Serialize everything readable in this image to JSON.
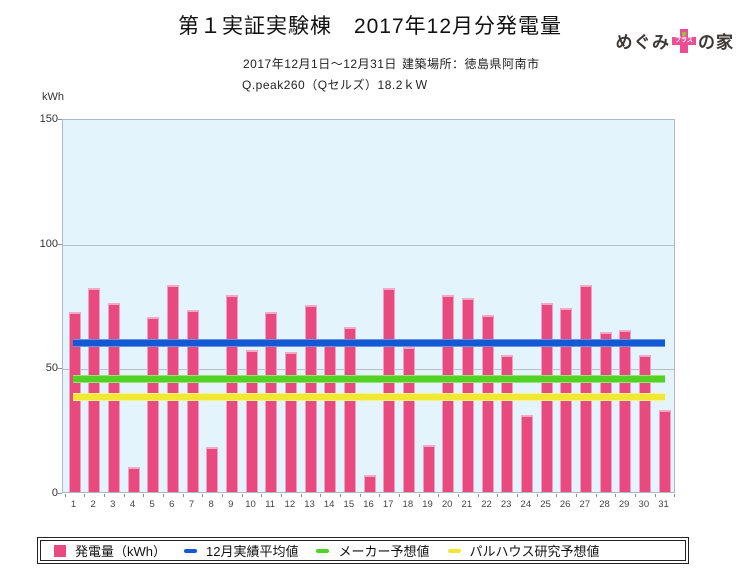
{
  "header": {
    "title": "第１実証実験棟　2017年12月分発電量",
    "logo": {
      "prefix": "めぐみ",
      "suffix": "の家",
      "plus_text": "プラス"
    },
    "period": "2017年12月1日～12月31日",
    "location": "建築場所：徳島県阿南市",
    "spec": "Q.peak260（Qセルズ）18.2ｋＷ"
  },
  "chart": {
    "unit_label": "kWh",
    "plot_bg": "#e4f4fc",
    "grid_color": "#b4bfc5"
  },
  "chart_data": {
    "type": "bar",
    "title": "第１実証実験棟　2017年12月分発電量",
    "ylabel": "kWh",
    "ylim": [
      0,
      150
    ],
    "y_ticks": [
      0,
      50,
      100,
      150
    ],
    "grid": true,
    "legend_position": "bottom",
    "categories": [
      1,
      2,
      3,
      4,
      5,
      6,
      7,
      8,
      9,
      10,
      11,
      12,
      13,
      14,
      15,
      16,
      17,
      18,
      19,
      20,
      21,
      22,
      23,
      24,
      25,
      26,
      27,
      28,
      29,
      30,
      31
    ],
    "series": [
      {
        "name": "発電量（kWh）",
        "type": "bar",
        "color": "#e8497e",
        "values": [
          72,
          82,
          76,
          10,
          70,
          83,
          73,
          18,
          79,
          57,
          72,
          56,
          75,
          60,
          66,
          7,
          82,
          58,
          19,
          79,
          78,
          71,
          55,
          31,
          76,
          74,
          83,
          64,
          65,
          55,
          33
        ]
      },
      {
        "name": "12月実績平均値",
        "type": "line",
        "color": "#1459d4",
        "edge_color": "#6b93e6",
        "value": 60.6
      },
      {
        "name": "メーカー予想値",
        "type": "line",
        "color": "#53d226",
        "edge_color": "#99e476",
        "value": 46
      },
      {
        "name": "パルハウス研究予想値",
        "type": "line",
        "color": "#f1e834",
        "edge_color": "#f7f294",
        "value": 39
      }
    ]
  },
  "legend": {
    "items": [
      {
        "label": "発電量（kWh）",
        "color": "#e8497e",
        "swatch": "square"
      },
      {
        "label": "12月実績平均値",
        "color": "#1459d4",
        "swatch": "dash"
      },
      {
        "label": "メーカー予想値",
        "color": "#53d226",
        "swatch": "dash"
      },
      {
        "label": "パルハウス研究予想値",
        "color": "#f1e834",
        "swatch": "dash"
      }
    ]
  }
}
